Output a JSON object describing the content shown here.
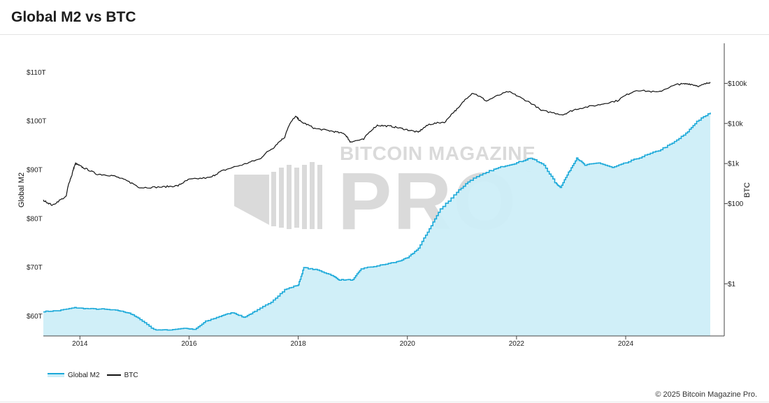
{
  "page": {
    "title": "Global M2 vs BTC",
    "copyright": "© 2025 Bitcoin Magazine Pro."
  },
  "watermark": {
    "brand": "BITCOIN MAGAZINE",
    "word": "PRO",
    "registered": "®",
    "color": "#d4d4d4",
    "accent_color": "#bfd9e0"
  },
  "colors": {
    "m2_line": "#1ba9d9",
    "m2_fill": "#cdeef8",
    "btc_line": "#111111"
  },
  "chart_data": {
    "type": "line",
    "x_axis": {
      "ticks": [
        "2014",
        "2016",
        "2018",
        "2020",
        "2022",
        "2024"
      ],
      "range": [
        2013.33,
        2025.55
      ]
    },
    "y_left": {
      "label": "Global M2",
      "ticks": [
        "$60T",
        "$70T",
        "$80T",
        "$90T",
        "$100T",
        "$110T"
      ],
      "tick_values": [
        60,
        70,
        80,
        90,
        100,
        110
      ],
      "range": [
        56,
        116
      ],
      "unit": "trillion USD"
    },
    "y_right": {
      "label": "BTC",
      "scale": "log",
      "ticks": [
        "$1",
        "$100",
        "$1k",
        "$10k",
        "$100k"
      ],
      "tick_values": [
        1,
        100,
        1000,
        10000,
        100000
      ],
      "range": [
        0.05,
        1000000
      ]
    },
    "legend": {
      "position": "bottom-left",
      "entries": [
        "Global M2",
        "BTC"
      ]
    },
    "grid": false,
    "series": [
      {
        "name": "Global M2",
        "axis": "left",
        "style": "area",
        "points": [
          [
            2013.33,
            61.0
          ],
          [
            2013.6,
            61.2
          ],
          [
            2013.9,
            61.8
          ],
          [
            2014.1,
            61.6
          ],
          [
            2014.4,
            61.5
          ],
          [
            2014.7,
            61.2
          ],
          [
            2014.9,
            60.7
          ],
          [
            2015.1,
            59.4
          ],
          [
            2015.35,
            57.3
          ],
          [
            2015.6,
            57.2
          ],
          [
            2015.9,
            57.6
          ],
          [
            2016.1,
            57.3
          ],
          [
            2016.3,
            59.0
          ],
          [
            2016.6,
            60.2
          ],
          [
            2016.8,
            60.8
          ],
          [
            2017.0,
            59.8
          ],
          [
            2017.2,
            61.0
          ],
          [
            2017.5,
            63.0
          ],
          [
            2017.75,
            65.5
          ],
          [
            2018.0,
            66.5
          ],
          [
            2018.1,
            70.0
          ],
          [
            2018.35,
            69.5
          ],
          [
            2018.6,
            68.5
          ],
          [
            2018.75,
            67.5
          ],
          [
            2019.0,
            67.5
          ],
          [
            2019.15,
            69.8
          ],
          [
            2019.5,
            70.5
          ],
          [
            2019.8,
            71.2
          ],
          [
            2020.0,
            72.0
          ],
          [
            2020.2,
            74.0
          ],
          [
            2020.4,
            78.0
          ],
          [
            2020.6,
            82.0
          ],
          [
            2020.9,
            85.5
          ],
          [
            2021.15,
            88.0
          ],
          [
            2021.5,
            89.8
          ],
          [
            2021.75,
            90.8
          ],
          [
            2022.0,
            91.5
          ],
          [
            2022.25,
            92.5
          ],
          [
            2022.5,
            91.0
          ],
          [
            2022.7,
            87.5
          ],
          [
            2022.8,
            86.5
          ],
          [
            2022.95,
            89.5
          ],
          [
            2023.1,
            92.5
          ],
          [
            2023.25,
            91.0
          ],
          [
            2023.5,
            91.5
          ],
          [
            2023.75,
            90.5
          ],
          [
            2024.0,
            91.5
          ],
          [
            2024.3,
            92.8
          ],
          [
            2024.6,
            94.0
          ],
          [
            2024.85,
            95.5
          ],
          [
            2025.1,
            97.5
          ],
          [
            2025.3,
            100.0
          ],
          [
            2025.55,
            101.8
          ]
        ]
      },
      {
        "name": "BTC",
        "axis": "right",
        "style": "line",
        "points": [
          [
            2013.33,
            120
          ],
          [
            2013.5,
            90
          ],
          [
            2013.75,
            150
          ],
          [
            2013.85,
            500
          ],
          [
            2013.92,
            1000
          ],
          [
            2014.05,
            800
          ],
          [
            2014.3,
            550
          ],
          [
            2014.6,
            500
          ],
          [
            2014.9,
            350
          ],
          [
            2015.1,
            250
          ],
          [
            2015.5,
            260
          ],
          [
            2015.8,
            280
          ],
          [
            2016.0,
            400
          ],
          [
            2016.4,
            450
          ],
          [
            2016.6,
            650
          ],
          [
            2017.0,
            950
          ],
          [
            2017.3,
            1300
          ],
          [
            2017.55,
            2500
          ],
          [
            2017.75,
            4500
          ],
          [
            2017.95,
            15000
          ],
          [
            2018.05,
            11000
          ],
          [
            2018.3,
            7500
          ],
          [
            2018.6,
            6500
          ],
          [
            2018.85,
            5500
          ],
          [
            2018.95,
            3500
          ],
          [
            2019.2,
            4000
          ],
          [
            2019.45,
            9000
          ],
          [
            2019.7,
            8500
          ],
          [
            2019.95,
            7200
          ],
          [
            2020.2,
            6000
          ],
          [
            2020.4,
            9500
          ],
          [
            2020.7,
            11000
          ],
          [
            2020.95,
            25000
          ],
          [
            2021.2,
            58000
          ],
          [
            2021.45,
            36000
          ],
          [
            2021.85,
            62000
          ],
          [
            2022.1,
            42000
          ],
          [
            2022.45,
            21000
          ],
          [
            2022.85,
            16500
          ],
          [
            2023.1,
            23000
          ],
          [
            2023.5,
            29000
          ],
          [
            2023.85,
            37000
          ],
          [
            2024.2,
            68000
          ],
          [
            2024.6,
            60000
          ],
          [
            2024.95,
            95000
          ],
          [
            2025.15,
            98000
          ],
          [
            2025.35,
            85000
          ],
          [
            2025.55,
            107000
          ]
        ]
      }
    ]
  }
}
